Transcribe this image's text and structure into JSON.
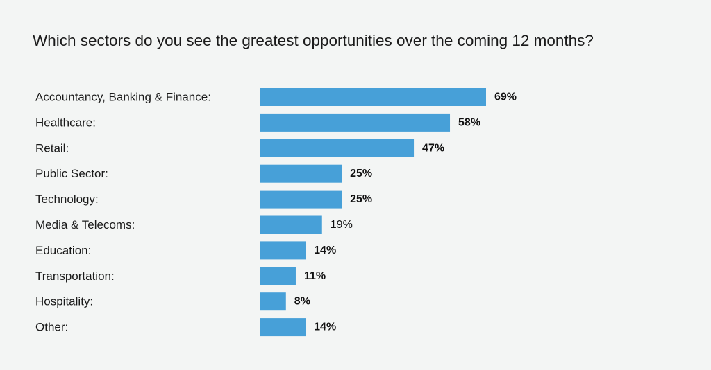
{
  "chart_data": {
    "type": "bar",
    "orientation": "horizontal",
    "title": "Which sectors do you see the greatest opportunities over the coming 12 months?",
    "xlabel": "",
    "ylabel": "",
    "categories": [
      "Accountancy, Banking & Finance:",
      "Healthcare:",
      "Retail:",
      "Public Sector:",
      "Technology:",
      "Media & Telecoms:",
      "Education:",
      "Transportation:",
      "Hospitality:",
      "Other:"
    ],
    "values": [
      69,
      58,
      47,
      25,
      25,
      19,
      14,
      11,
      8,
      14
    ],
    "value_labels": [
      "69%",
      "58%",
      "47%",
      "25%",
      "25%",
      "19%",
      "14%",
      "11%",
      "8%",
      "14%"
    ],
    "value_label_bold": [
      true,
      true,
      true,
      true,
      true,
      false,
      true,
      true,
      true,
      true
    ],
    "xlim": [
      0,
      69
    ],
    "grid": false,
    "legend": "none",
    "bar_color": "#47a0d8"
  }
}
